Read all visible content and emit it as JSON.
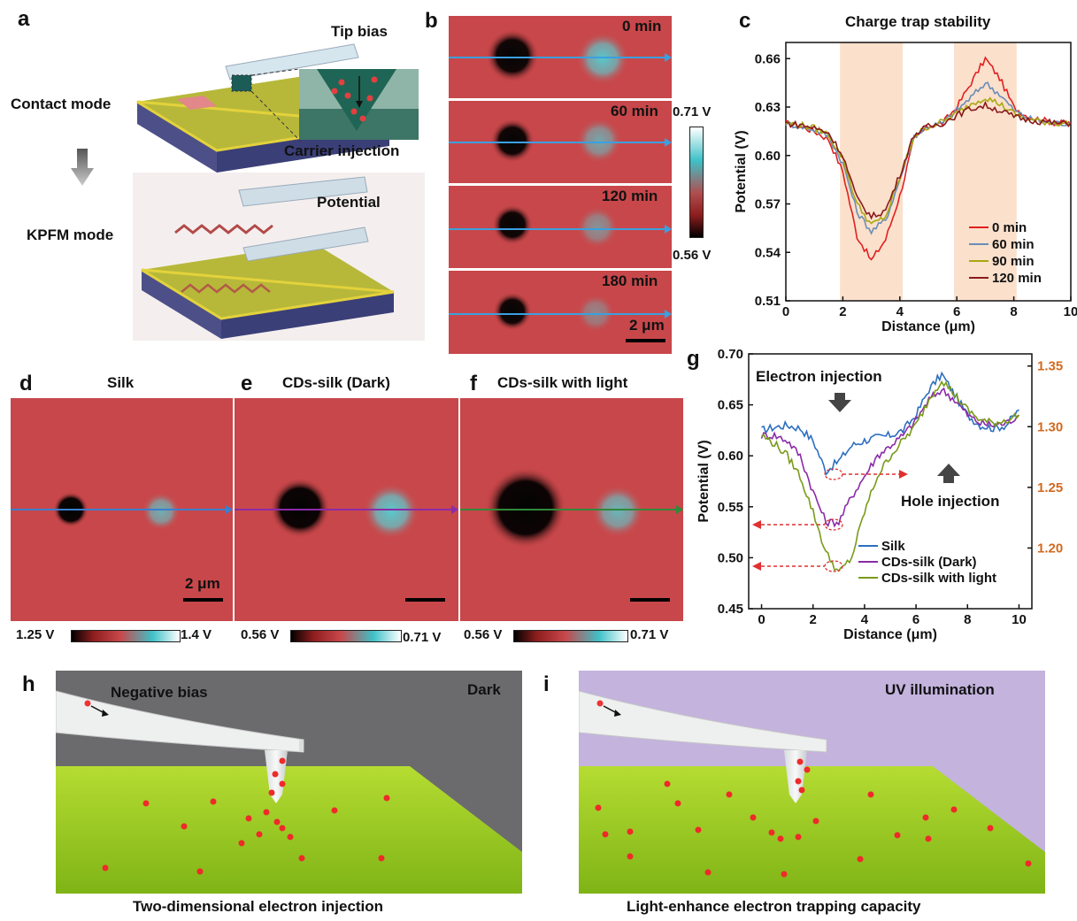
{
  "panels": {
    "a": {
      "letter": "a",
      "tip_bias": "Tip bias",
      "contact_mode": "Contact mode",
      "carrier_injection": "Carrier injection",
      "potential": "Potential",
      "kpfm_mode": "KPFM mode"
    },
    "b": {
      "letter": "b",
      "times": [
        "0 min",
        "60 min",
        "120 min",
        "180 min"
      ],
      "cbar_max": "0.71 V",
      "cbar_min": "0.56 V",
      "scalebar": "2 μm"
    },
    "c": {
      "letter": "c",
      "title": "Charge trap stability"
    },
    "d": {
      "letter": "d",
      "title": "Silk",
      "scalebar": "2 μm",
      "cbar_min": "1.25 V",
      "cbar_max": "1.4 V"
    },
    "e": {
      "letter": "e",
      "title": "CDs-silk (Dark)",
      "cbar_min": "0.56 V",
      "cbar_max": "0.71 V"
    },
    "f": {
      "letter": "f",
      "title": "CDs-silk with light",
      "cbar_min": "0.56 V",
      "cbar_max": "0.71 V"
    },
    "g": {
      "letter": "g",
      "electron_injection": "Electron injection",
      "hole_injection": "Hole injection"
    },
    "h": {
      "letter": "h",
      "negative_bias": "Negative bias",
      "dark": "Dark",
      "caption": "Two-dimensional electron injection"
    },
    "i": {
      "letter": "i",
      "uv_illumination": "UV illumination",
      "caption": "Light-enhance electron trapping capacity"
    }
  },
  "colors": {
    "kpfm_red": "#c8474a",
    "line_blue": "#3aa0e0",
    "dark_bg": "#6b6b6e",
    "uv_bg": "#c3b3dd",
    "grass": "#9ccc1e"
  },
  "chart_data": [
    {
      "type": "line",
      "title": "Charge trap stability",
      "xlabel": "Distance (μm)",
      "ylabel": "Potential (V)",
      "xlim": [
        0,
        10
      ],
      "ylim": [
        0.51,
        0.67
      ],
      "xticks": [
        "0",
        "2",
        "4",
        "6",
        "8",
        "10"
      ],
      "yticks": [
        "0.51",
        "0.54",
        "0.57",
        "0.60",
        "0.63",
        "0.66"
      ],
      "x": [
        0,
        0.5,
        1.0,
        1.5,
        2.0,
        2.5,
        3.0,
        3.5,
        4.0,
        4.5,
        5.0,
        5.5,
        6.0,
        6.5,
        7.0,
        7.5,
        8.0,
        8.5,
        9.0,
        9.5,
        10.0
      ],
      "highlight_ranges": [
        [
          1.9,
          4.1
        ],
        [
          5.9,
          8.1
        ]
      ],
      "legend_position": "bottom-right",
      "series": [
        {
          "name": "0 min",
          "color": "#e02020",
          "values": [
            0.62,
            0.618,
            0.615,
            0.61,
            0.59,
            0.55,
            0.535,
            0.548,
            0.575,
            0.61,
            0.618,
            0.62,
            0.63,
            0.645,
            0.66,
            0.648,
            0.63,
            0.624,
            0.622,
            0.62,
            0.62
          ]
        },
        {
          "name": "60 min",
          "color": "#6a8db8",
          "values": [
            0.62,
            0.618,
            0.616,
            0.612,
            0.595,
            0.565,
            0.553,
            0.56,
            0.585,
            0.612,
            0.618,
            0.62,
            0.628,
            0.636,
            0.645,
            0.638,
            0.628,
            0.623,
            0.621,
            0.62,
            0.62
          ]
        },
        {
          "name": "90 min",
          "color": "#a8a810",
          "values": [
            0.62,
            0.619,
            0.617,
            0.613,
            0.598,
            0.57,
            0.557,
            0.562,
            0.586,
            0.612,
            0.618,
            0.621,
            0.626,
            0.632,
            0.636,
            0.632,
            0.626,
            0.622,
            0.621,
            0.62,
            0.62
          ]
        },
        {
          "name": "120 min",
          "color": "#8a1a1a",
          "values": [
            0.62,
            0.619,
            0.617,
            0.614,
            0.6,
            0.573,
            0.562,
            0.566,
            0.588,
            0.613,
            0.618,
            0.62,
            0.625,
            0.629,
            0.631,
            0.628,
            0.624,
            0.622,
            0.621,
            0.62,
            0.62
          ]
        }
      ]
    },
    {
      "type": "line",
      "xlabel": "Distance (μm)",
      "ylabel": "Potential (V)",
      "xlim": [
        -0.5,
        10.5
      ],
      "ylim": [
        0.45,
        0.7
      ],
      "y2lim": [
        1.15,
        1.36
      ],
      "xticks": [
        "0",
        "2",
        "4",
        "6",
        "8",
        "10"
      ],
      "yticks": [
        "0.45",
        "0.50",
        "0.55",
        "0.60",
        "0.65",
        "0.70"
      ],
      "y2ticks": [
        "1.20",
        "1.25",
        "1.30",
        "1.35"
      ],
      "x": [
        0,
        0.5,
        1.0,
        1.5,
        2.0,
        2.5,
        3.0,
        3.5,
        4.0,
        4.5,
        5.0,
        5.5,
        6.0,
        6.5,
        7.0,
        7.5,
        8.0,
        8.5,
        9.0,
        9.5,
        10.0
      ],
      "legend_position": "bottom-right",
      "series": [
        {
          "name": "Silk",
          "color": "#2d6fc0",
          "values": [
            0.625,
            0.628,
            0.63,
            0.627,
            0.615,
            0.585,
            0.595,
            0.61,
            0.615,
            0.618,
            0.62,
            0.625,
            0.64,
            0.665,
            0.68,
            0.66,
            0.64,
            0.63,
            0.627,
            0.63,
            0.645
          ]
        },
        {
          "name": "CDs-silk (Dark)",
          "color": "#8a2ba8",
          "values": [
            0.62,
            0.62,
            0.615,
            0.6,
            0.565,
            0.535,
            0.535,
            0.56,
            0.58,
            0.6,
            0.61,
            0.62,
            0.635,
            0.655,
            0.665,
            0.655,
            0.64,
            0.632,
            0.63,
            0.632,
            0.64
          ]
        },
        {
          "name": "CDs-silk with light",
          "color": "#7a9a1a",
          "values": [
            0.62,
            0.612,
            0.6,
            0.58,
            0.545,
            0.505,
            0.485,
            0.5,
            0.545,
            0.58,
            0.6,
            0.615,
            0.63,
            0.655,
            0.675,
            0.66,
            0.645,
            0.635,
            0.632,
            0.635,
            0.64
          ]
        }
      ]
    }
  ]
}
